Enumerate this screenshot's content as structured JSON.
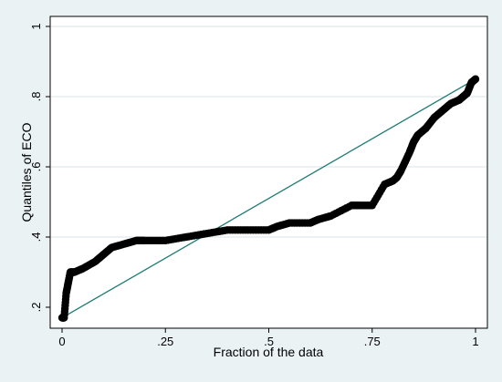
{
  "chart_data": {
    "type": "scatter",
    "title": "",
    "xlabel": "Fraction of the data",
    "ylabel": "Quantiles of ECO",
    "xlim": [
      0,
      1
    ],
    "ylim": [
      0.15,
      1.0
    ],
    "x_ticks": [
      0,
      0.25,
      0.5,
      0.75,
      1
    ],
    "x_tick_labels": [
      "0",
      ".25",
      ".5",
      ".75",
      "1"
    ],
    "y_ticks": [
      0.2,
      0.4,
      0.6,
      0.8,
      1.0
    ],
    "y_tick_labels": [
      ".2",
      ".4",
      ".6",
      ".8",
      "1"
    ],
    "grid": "horizontal",
    "quantile_curve": {
      "x": [
        0.0,
        0.005,
        0.01,
        0.015,
        0.02,
        0.03,
        0.05,
        0.08,
        0.1,
        0.12,
        0.15,
        0.18,
        0.2,
        0.25,
        0.3,
        0.35,
        0.4,
        0.45,
        0.5,
        0.52,
        0.55,
        0.6,
        0.62,
        0.65,
        0.7,
        0.72,
        0.75,
        0.78,
        0.8,
        0.81,
        0.82,
        0.84,
        0.85,
        0.86,
        0.88,
        0.9,
        0.92,
        0.94,
        0.96,
        0.97,
        0.98,
        0.99,
        1.0
      ],
      "y": [
        0.17,
        0.17,
        0.24,
        0.27,
        0.3,
        0.3,
        0.31,
        0.33,
        0.35,
        0.37,
        0.38,
        0.39,
        0.39,
        0.39,
        0.4,
        0.41,
        0.42,
        0.42,
        0.42,
        0.43,
        0.44,
        0.44,
        0.45,
        0.46,
        0.49,
        0.49,
        0.49,
        0.55,
        0.56,
        0.57,
        0.59,
        0.64,
        0.67,
        0.69,
        0.71,
        0.74,
        0.76,
        0.78,
        0.79,
        0.8,
        0.81,
        0.84,
        0.85
      ]
    },
    "reference_line": {
      "x": [
        0,
        1
      ],
      "y": [
        0.17,
        0.85
      ]
    },
    "colors": {
      "background": "#eaf2f3",
      "plot_area": "#ffffff",
      "grid": "#d9e6e8",
      "points": "#000000",
      "reference_line": "#1e7b74"
    }
  }
}
